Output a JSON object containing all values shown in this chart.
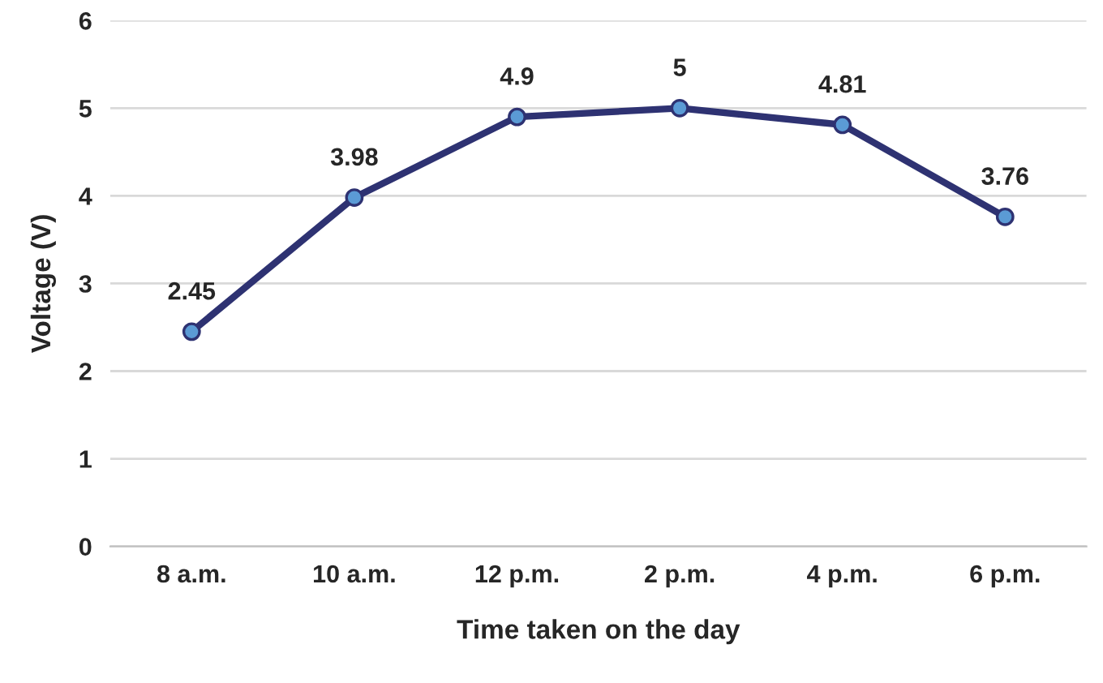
{
  "chart_data": {
    "type": "line",
    "xlabel": "Time taken on the day",
    "ylabel": "Voltage (V)",
    "categories": [
      "8 a.m.",
      "10 a.m.",
      "12 p.m.",
      "2 p.m.",
      "4 p.m.",
      "6 p.m."
    ],
    "series": [
      {
        "color": "#2e3272",
        "values": [
          2.45,
          3.98,
          4.9,
          5,
          4.81,
          3.76
        ]
      }
    ],
    "ylim": [
      0,
      6
    ],
    "yticks": [
      0,
      1,
      2,
      3,
      4,
      5,
      6
    ],
    "grid": "y",
    "marker": "circle",
    "line_style": "solid",
    "data_labels": true
  }
}
